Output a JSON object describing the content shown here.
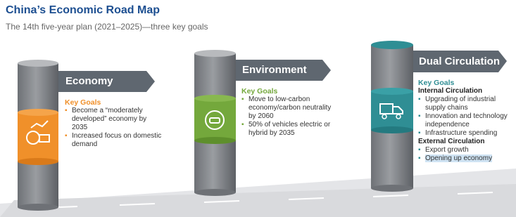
{
  "header": {
    "title": "China’s Economic Road Map",
    "subtitle": "The 14th five-year plan (2021–2025)—three key goals"
  },
  "pillars": [
    {
      "label": "Economy",
      "goals_heading": "Key Goals",
      "goals": [
        "Become a “moderately developed” economy by 2035",
        "Increased focus on domestic demand"
      ]
    },
    {
      "label": "Environment",
      "goals_heading": "Key Goals",
      "goals": [
        "Move to low-carbon economy/carbon neutrality by 2060",
        "50% of vehicles electric or hybrid by 2035"
      ]
    },
    {
      "label": "Dual Circulation",
      "goals_heading": "Key Goals",
      "sections": [
        {
          "heading": "Internal Circulation",
          "goals": [
            "Upgrading of industrial supply chains",
            "Innovation and technology independence",
            "Infrastructure spending"
          ]
        },
        {
          "heading": "External Circulation",
          "goals": [
            "Export growth",
            "Opening up economy"
          ]
        }
      ]
    }
  ]
}
